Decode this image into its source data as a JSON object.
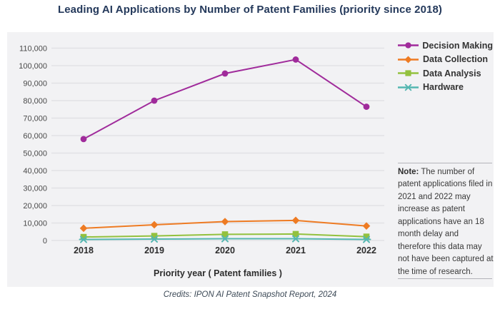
{
  "page": {
    "title": "Leading AI Applications by Number of Patent Families (priority since 2018)",
    "credits": "Credits: IPON AI Patent Snapshot Report, 2024"
  },
  "note": {
    "label": "Note:",
    "text": " The number of patent applications filed in 2021 and 2022 may increase as patent applications have an 18 month delay and therefore this data may not have been captured at the time of research."
  },
  "colors": {
    "title_navy": "#24395b",
    "panel_background": "#f2f2f4",
    "gridline": "#e1e1e5",
    "axis_text": "#4a4a4a",
    "decision_making": "#a02b9b",
    "data_collection": "#ee7b23",
    "data_analysis": "#93c13e",
    "hardware": "#55b7b1"
  },
  "chart_data": {
    "type": "line",
    "categories": [
      "2018",
      "2019",
      "2020",
      "2021",
      "2022"
    ],
    "series": [
      {
        "name": "Decision Making",
        "color": "#a02b9b",
        "marker": "circle",
        "values": [
          58000,
          80000,
          95500,
          103500,
          76500
        ]
      },
      {
        "name": "Data Collection",
        "color": "#ee7b23",
        "marker": "diamond",
        "values": [
          7000,
          9000,
          10800,
          11500,
          8300
        ]
      },
      {
        "name": "Data Analysis",
        "color": "#93c13e",
        "marker": "square",
        "values": [
          2000,
          2600,
          3500,
          3700,
          2200
        ]
      },
      {
        "name": "Hardware",
        "color": "#55b7b1",
        "marker": "x",
        "values": [
          600,
          800,
          1000,
          1000,
          600
        ]
      }
    ],
    "title": "",
    "xlabel": "Priority year ( Patent families )",
    "ylabel": "",
    "ylim": [
      0,
      110000
    ],
    "ytick_step": 10000,
    "yticks": [
      "0",
      "10,000",
      "20,000",
      "30,000",
      "40,000",
      "50,000",
      "60,000",
      "70,000",
      "80,000",
      "90,000",
      "100,000",
      "110,000"
    ],
    "grid": true,
    "legend_position": "top-right"
  }
}
